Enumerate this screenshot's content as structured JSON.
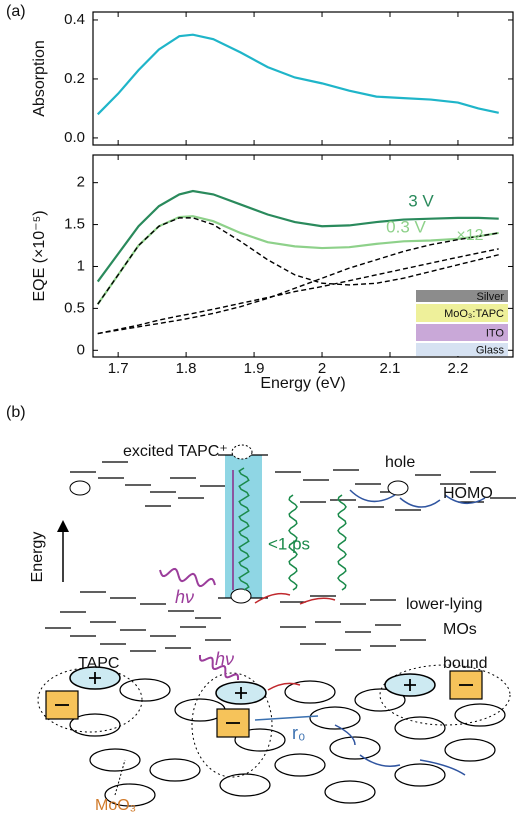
{
  "panel_a": "(a)",
  "chart_data": [
    {
      "type": "line",
      "ylabel": "Absorption",
      "x": [
        1.67,
        1.7,
        1.73,
        1.76,
        1.79,
        1.81,
        1.84,
        1.88,
        1.92,
        1.96,
        2.0,
        2.04,
        2.08,
        2.12,
        2.16,
        2.2,
        2.23,
        2.26
      ],
      "series": [
        {
          "color": "#1fb5c9",
          "values": [
            0.08,
            0.15,
            0.23,
            0.3,
            0.345,
            0.35,
            0.335,
            0.29,
            0.24,
            0.205,
            0.185,
            0.16,
            0.14,
            0.135,
            0.13,
            0.12,
            0.1,
            0.085
          ]
        }
      ],
      "xlim": [
        1.663,
        2.281
      ],
      "xticks": [
        1.7,
        1.8,
        1.9,
        2.0,
        2.1,
        2.2
      ],
      "ylim": [
        -0.024,
        0.427
      ],
      "yticks": [
        {
          "value": 0,
          "label": "0.0"
        },
        0.2,
        0.4
      ]
    },
    {
      "type": "line",
      "ylabel": "EQE (×10⁻⁵)",
      "xlabel": "Energy (eV)",
      "x": [
        1.67,
        1.7,
        1.73,
        1.76,
        1.79,
        1.81,
        1.84,
        1.88,
        1.92,
        1.96,
        2.0,
        2.04,
        2.08,
        2.12,
        2.16,
        2.2,
        2.23,
        2.26
      ],
      "series": [
        {
          "name": "3 V",
          "color": "#2a8a5c",
          "values": [
            0.82,
            1.15,
            1.48,
            1.72,
            1.86,
            1.9,
            1.86,
            1.74,
            1.62,
            1.53,
            1.48,
            1.49,
            1.53,
            1.56,
            1.57,
            1.58,
            1.58,
            1.57
          ]
        },
        {
          "name": "0.3 V",
          "note_label": "×12",
          "color": "#8ed18a",
          "values": [
            0.55,
            0.9,
            1.25,
            1.48,
            1.59,
            1.6,
            1.54,
            1.4,
            1.29,
            1.24,
            1.22,
            1.23,
            1.27,
            1.3,
            1.31,
            1.33,
            1.36,
            1.4
          ]
        },
        {
          "color": "#000000",
          "dashed": true,
          "values": [
            0.55,
            0.9,
            1.25,
            1.48,
            1.58,
            1.58,
            1.5,
            1.3,
            1.08,
            0.9,
            0.8,
            0.78,
            0.8,
            0.86,
            0.94,
            1.02,
            1.08,
            1.14
          ]
        },
        {
          "color": "#000000",
          "dashed": true,
          "values": [
            0.2,
            0.24,
            0.28,
            0.32,
            0.36,
            0.39,
            0.44,
            0.52,
            0.62,
            0.74,
            0.86,
            0.98,
            1.08,
            1.18,
            1.26,
            1.32,
            1.36,
            1.4
          ]
        },
        {
          "color": "#000000",
          "dashed": true,
          "values": [
            0.2,
            0.25,
            0.3,
            0.36,
            0.41,
            0.44,
            0.49,
            0.56,
            0.63,
            0.7,
            0.76,
            0.83,
            0.9,
            0.97,
            1.04,
            1.11,
            1.16,
            1.21
          ]
        }
      ],
      "xlim": [
        1.663,
        2.281
      ],
      "xticks": [
        1.7,
        1.8,
        1.9,
        2.0,
        2.1,
        2.2
      ],
      "ylim": [
        -0.08,
        2.33
      ],
      "yticks": [
        0,
        0.5,
        1,
        1.5,
        2
      ],
      "device_layers": [
        {
          "name": "Silver",
          "color": "#8c8c8c"
        },
        {
          "name": "MoO₃:TAPC",
          "color": "#eef09a"
        },
        {
          "name": "ITO",
          "color": "#c9a8d8"
        },
        {
          "name": "Glass",
          "color": "#d6e2f2"
        }
      ]
    }
  ],
  "diagram": {
    "label": "(b)",
    "excited": "excited TAPC⁺",
    "hole": "hole",
    "homo": "HOMO",
    "energy": "Energy",
    "hv1": "hν",
    "fast": "<1 ps",
    "lower": "lower-lying",
    "mos": "MOs",
    "tapc": "TAPC",
    "hv2": "hν",
    "bound": "bound",
    "r0": "r₀",
    "moo3": "MoO₃"
  }
}
